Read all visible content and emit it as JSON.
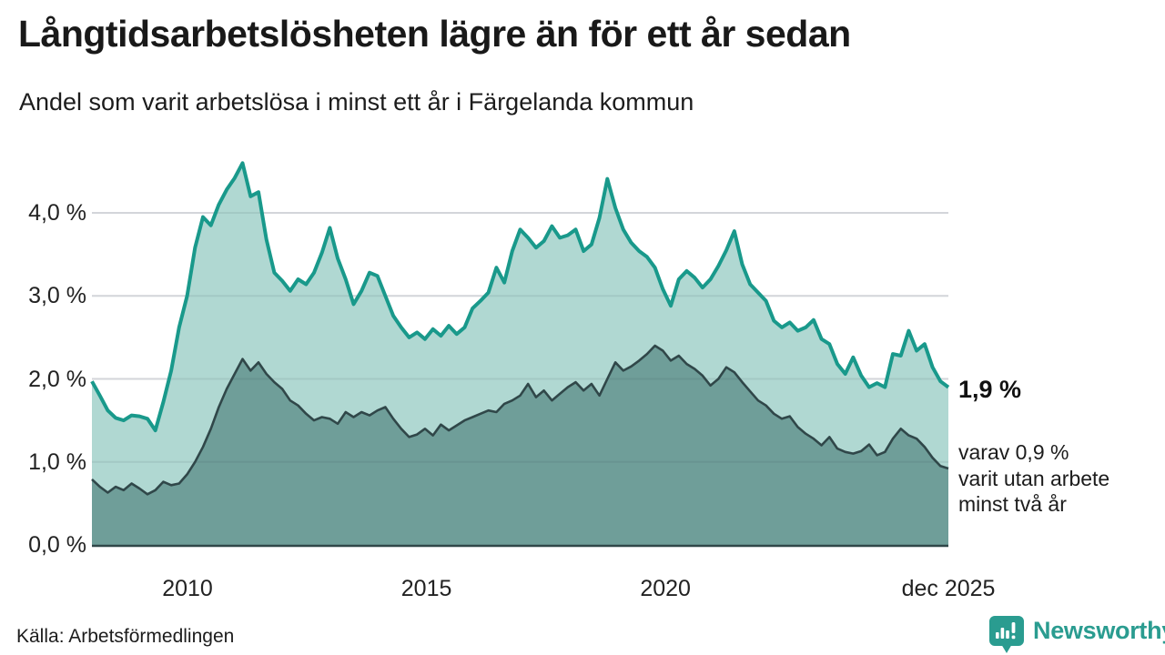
{
  "header": {
    "title": "Långtidsarbetslösheten lägre än för ett år sedan",
    "subtitle": "Andel som varit arbetslösa i minst ett år i Färgelanda kommun"
  },
  "footer": {
    "source": "Källa: Arbetsförmedlingen",
    "brand": "Newsworthy",
    "brand_color": "#2a9c90"
  },
  "chart_data": {
    "type": "area",
    "title": "Långtidsarbetslösheten lägre än för ett år sedan",
    "subtitle": "Andel som varit arbetslösa i minst ett år i Färgelanda kommun",
    "unit": "%",
    "x_start_year": 2008,
    "x_step_months": 2,
    "xlim": [
      2008.0,
      2025.92
    ],
    "ylim": [
      0,
      4.75
    ],
    "grid": "horizontal",
    "colors": {
      "line_1yr": "#19998b",
      "fill_1yr": "#b0d8d2",
      "line_2yr": "#304749",
      "fill_2yr": "#6f9e99",
      "gridline": "#e6e6ea",
      "baseline": "#304749"
    },
    "y_ticks": [
      {
        "label": "4,0 %",
        "value": 4
      },
      {
        "label": "3,0 %",
        "value": 3
      },
      {
        "label": "2,0 %",
        "value": 2
      },
      {
        "label": "1,0 %",
        "value": 1
      },
      {
        "label": "0,0 %",
        "value": 0
      }
    ],
    "x_ticks": [
      {
        "label": "2010",
        "year": 2010
      },
      {
        "label": "2015",
        "year": 2015
      },
      {
        "label": "2020",
        "year": 2020
      },
      {
        "label": "dec 2025",
        "year": 2025.92
      }
    ],
    "series": [
      {
        "name": "Andel som varit arbetslösa minst ett år",
        "values": [
          1.97,
          1.8,
          1.62,
          1.53,
          1.5,
          1.56,
          1.55,
          1.52,
          1.38,
          1.72,
          2.1,
          2.62,
          3.0,
          3.58,
          3.95,
          3.85,
          4.1,
          4.28,
          4.42,
          4.6,
          4.2,
          4.25,
          3.68,
          3.28,
          3.18,
          3.06,
          3.2,
          3.14,
          3.28,
          3.52,
          3.82,
          3.45,
          3.2,
          2.9,
          3.06,
          3.28,
          3.24,
          3.0,
          2.76,
          2.62,
          2.5,
          2.56,
          2.48,
          2.6,
          2.52,
          2.64,
          2.54,
          2.62,
          2.85,
          2.94,
          3.04,
          3.34,
          3.16,
          3.54,
          3.8,
          3.7,
          3.58,
          3.66,
          3.84,
          3.7,
          3.73,
          3.8,
          3.54,
          3.62,
          3.94,
          4.41,
          4.06,
          3.8,
          3.64,
          3.54,
          3.47,
          3.34,
          3.08,
          2.88,
          3.2,
          3.3,
          3.22,
          3.1,
          3.2,
          3.36,
          3.55,
          3.78,
          3.38,
          3.14,
          3.04,
          2.94,
          2.7,
          2.62,
          2.68,
          2.58,
          2.62,
          2.71,
          2.48,
          2.42,
          2.18,
          2.06,
          2.26,
          2.04,
          1.9,
          1.95,
          1.9,
          2.3,
          2.28,
          2.58,
          2.34,
          2.42,
          2.14,
          1.97,
          1.9
        ]
      },
      {
        "name": "varav arbetslösa minst två år",
        "values": [
          0.79,
          0.7,
          0.63,
          0.7,
          0.66,
          0.74,
          0.68,
          0.61,
          0.66,
          0.76,
          0.72,
          0.74,
          0.85,
          1.0,
          1.18,
          1.4,
          1.66,
          1.88,
          2.06,
          2.24,
          2.1,
          2.2,
          2.06,
          1.96,
          1.88,
          1.74,
          1.68,
          1.58,
          1.5,
          1.54,
          1.52,
          1.46,
          1.6,
          1.54,
          1.6,
          1.56,
          1.62,
          1.66,
          1.52,
          1.4,
          1.3,
          1.33,
          1.4,
          1.32,
          1.45,
          1.38,
          1.44,
          1.5,
          1.54,
          1.58,
          1.62,
          1.6,
          1.7,
          1.74,
          1.8,
          1.94,
          1.78,
          1.86,
          1.74,
          1.82,
          1.9,
          1.96,
          1.86,
          1.94,
          1.8,
          2.0,
          2.2,
          2.1,
          2.15,
          2.22,
          2.3,
          2.4,
          2.34,
          2.22,
          2.28,
          2.18,
          2.12,
          2.04,
          1.92,
          2.0,
          2.14,
          2.08,
          1.96,
          1.85,
          1.74,
          1.68,
          1.58,
          1.52,
          1.55,
          1.42,
          1.34,
          1.28,
          1.2,
          1.3,
          1.16,
          1.12,
          1.1,
          1.13,
          1.21,
          1.08,
          1.12,
          1.28,
          1.4,
          1.32,
          1.28,
          1.18,
          1.05,
          0.95,
          0.92
        ]
      }
    ],
    "annotations": {
      "end_value": "1,9 %",
      "end_sub": "varav 0,9 %\nvarit utan arbete\nminst två år"
    }
  }
}
